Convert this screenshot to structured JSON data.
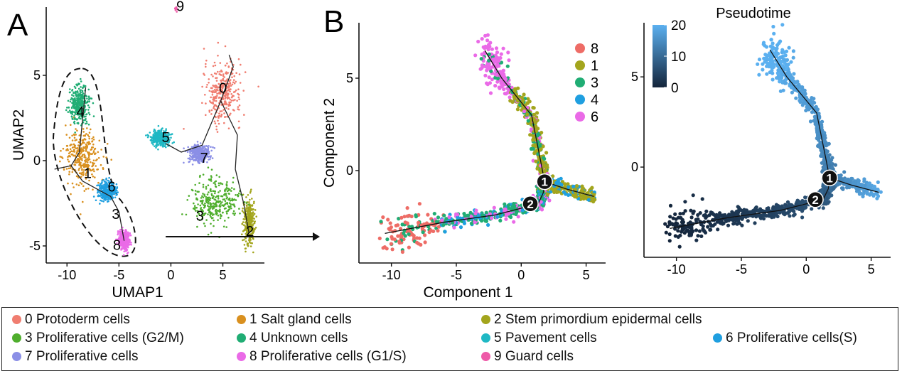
{
  "panels": {
    "A": {
      "letter": "A",
      "xlabel": "UMAP1",
      "ylabel": "UMAP2",
      "xticks": [
        -10,
        -5,
        0,
        5
      ],
      "yticks": [
        5,
        0,
        -5
      ],
      "xlim": [
        -12,
        9
      ],
      "ylim": [
        -6,
        9
      ],
      "cluster_labels": [
        {
          "text": "0",
          "x": 5,
          "y": 4.2
        },
        {
          "text": "1",
          "x": -8,
          "y": -0.8
        },
        {
          "text": "2",
          "x": 7.6,
          "y": -4.2
        },
        {
          "text": "3",
          "x": 2.8,
          "y": -3.3
        },
        {
          "text": "3",
          "x": -5.3,
          "y": -3.2
        },
        {
          "text": "4",
          "x": -8.7,
          "y": 2.8
        },
        {
          "text": "5",
          "x": -0.5,
          "y": 1.3
        },
        {
          "text": "6",
          "x": -5.7,
          "y": -1.6
        },
        {
          "text": "7",
          "x": 3.2,
          "y": 0.1
        },
        {
          "text": "8",
          "x": -5.2,
          "y": -5.0
        },
        {
          "text": "9",
          "x": 0.9,
          "y": 9.0
        }
      ]
    },
    "B": {
      "letter": "B",
      "xlabel": "Component 1",
      "ylabel": "Component 2",
      "xticks": [
        -10,
        -5,
        0,
        5
      ],
      "yticks": [
        5,
        0
      ],
      "xlim": [
        -12.5,
        6.5
      ],
      "ylim": [
        -5,
        8
      ],
      "legend": [
        {
          "label": "8",
          "color": "#ee6c66"
        },
        {
          "label": "1",
          "color": "#a3a51d"
        },
        {
          "label": "3",
          "color": "#20ad74"
        },
        {
          "label": "4",
          "color": "#1f9fe0"
        },
        {
          "label": "6",
          "color": "#ea6ae7"
        }
      ],
      "branch_points": [
        "1",
        "2"
      ]
    },
    "C": {
      "title": "Pseudotime",
      "xticks": [
        -10,
        -5,
        0,
        5
      ],
      "yticks": [
        5,
        0
      ],
      "colorbar_ticks": [
        20,
        10,
        0
      ],
      "colorbar_low": "#14253b",
      "colorbar_high": "#5bb0f0",
      "branch_points": [
        "1",
        "2"
      ]
    }
  },
  "legend_items": [
    {
      "label": "0 Protoderm cells",
      "color": "#f07d70"
    },
    {
      "label": "1 Salt gland cells",
      "color": "#d9901f"
    },
    {
      "label": "2 Stem primordium epidermal cells",
      "color": "#a3a51d"
    },
    {
      "label": "3 Proliferative cells (G2/M)",
      "color": "#4fae2d"
    },
    {
      "label": "4 Unknown cells",
      "color": "#20ad74"
    },
    {
      "label": "5 Pavement cells",
      "color": "#1fb8c4"
    },
    {
      "label": "6 Proliferative cells(S)",
      "color": "#1f9fe0"
    },
    {
      "label": "7 Proliferative cells",
      "color": "#8b8fe6"
    },
    {
      "label": "8 Proliferative cells (G1/S)",
      "color": "#ea6ae7"
    },
    {
      "label": "9 Guard cells",
      "color": "#ee5aa8"
    }
  ],
  "chart_data": [
    {
      "type": "scatter",
      "title": "",
      "xlabel": "UMAP1",
      "ylabel": "UMAP2",
      "xlim": [
        -12,
        9
      ],
      "ylim": [
        -6,
        9
      ],
      "series": [
        {
          "name": "0 Protoderm cells",
          "center": [
            5.0,
            4.0
          ],
          "spread": [
            1.6,
            1.6
          ],
          "color": "#f07d70"
        },
        {
          "name": "1 Salt gland cells",
          "center": [
            -8.5,
            0.2
          ],
          "spread": [
            1.6,
            1.5
          ],
          "color": "#d9901f"
        },
        {
          "name": "2 Stem primordium epidermal cells",
          "center": [
            7.5,
            -3.6
          ],
          "spread": [
            0.5,
            1.2
          ],
          "color": "#a3a51d"
        },
        {
          "name": "3 Proliferative cells (G2/M)",
          "center": [
            4.3,
            -2.4
          ],
          "spread": [
            2.0,
            1.2
          ],
          "color": "#4fae2d"
        },
        {
          "name": "4 Unknown cells",
          "center": [
            -8.8,
            3.3
          ],
          "spread": [
            0.9,
            1.0
          ],
          "color": "#20ad74"
        },
        {
          "name": "5 Pavement cells",
          "center": [
            -1.0,
            1.3
          ],
          "spread": [
            0.8,
            0.4
          ],
          "color": "#1fb8c4"
        },
        {
          "name": "6 Proliferative cells(S)",
          "center": [
            -6.2,
            -1.8
          ],
          "spread": [
            0.8,
            0.5
          ],
          "color": "#1f9fe0"
        },
        {
          "name": "7 Proliferative cells",
          "center": [
            2.7,
            0.4
          ],
          "spread": [
            0.9,
            0.5
          ],
          "color": "#8b8fe6"
        },
        {
          "name": "8 Proliferative cells (G1/S)",
          "center": [
            -4.5,
            -4.7
          ],
          "spread": [
            0.5,
            0.5
          ],
          "color": "#ea6ae7"
        },
        {
          "name": "9 Guard cells",
          "center": [
            0.5,
            9.0
          ],
          "spread": [
            0.15,
            0.25
          ],
          "color": "#ee5aa8"
        }
      ]
    },
    {
      "type": "scatter",
      "title": "",
      "xlabel": "Component 1",
      "ylabel": "Component 2",
      "xlim": [
        -12.5,
        6.5
      ],
      "ylim": [
        -5,
        8
      ],
      "trajectory": [
        [
          -10.5,
          -3.4
        ],
        [
          -6,
          -2.8
        ],
        [
          -2,
          -2.4
        ],
        [
          1.3,
          -1.8
        ],
        [
          1.7,
          -1.2
        ],
        [
          1.8,
          -0.6
        ],
        [
          1.5,
          0.5
        ],
        [
          0.8,
          3.0
        ],
        [
          -1.5,
          5.0
        ],
        [
          -2.8,
          6.5
        ]
      ],
      "branch": [
        [
          1.8,
          -0.6
        ],
        [
          3.5,
          -1.0
        ],
        [
          5.6,
          -1.4
        ]
      ],
      "series": [
        {
          "name": "8",
          "color": "#ee6c66"
        },
        {
          "name": "1",
          "color": "#a3a51d"
        },
        {
          "name": "3",
          "color": "#20ad74"
        },
        {
          "name": "4",
          "color": "#1f9fe0"
        },
        {
          "name": "6",
          "color": "#ea6ae7"
        }
      ]
    },
    {
      "type": "scatter",
      "title": "Pseudotime",
      "xlabel": "",
      "ylabel": "",
      "xlim": [
        -12.5,
        6.5
      ],
      "ylim": [
        -5,
        8
      ],
      "colorbar": {
        "min": 0,
        "max": 20
      }
    }
  ]
}
